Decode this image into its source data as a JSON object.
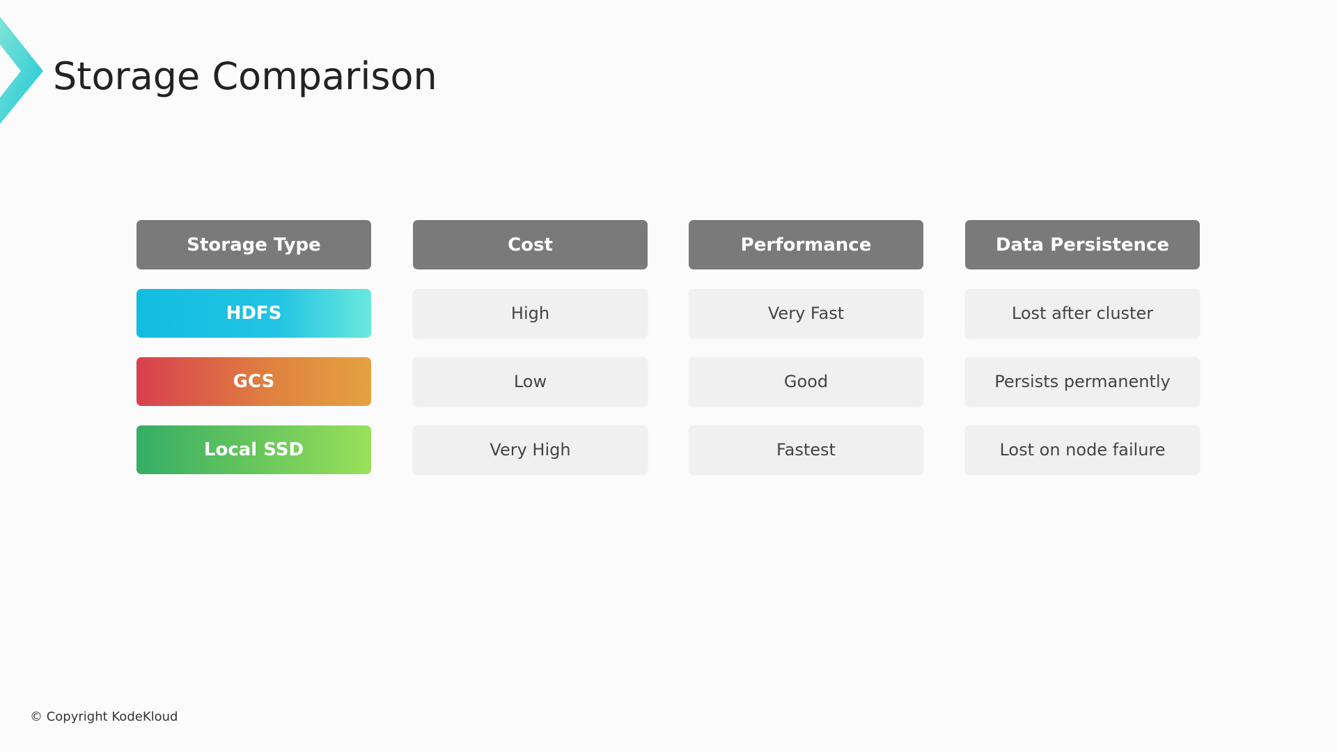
{
  "header": {
    "title": "Storage Comparison"
  },
  "table": {
    "headers": [
      "Storage Type",
      "Cost",
      "Performance",
      "Data Persistence"
    ],
    "rows": [
      [
        "HDFS",
        "High",
        "Very Fast",
        "Lost after cluster"
      ],
      [
        "GCS",
        "Low",
        "Good",
        "Persists permanently"
      ],
      [
        "Local SSD",
        "Very High",
        "Fastest",
        "Lost on node failure"
      ]
    ]
  },
  "footer": {
    "copyright": "© Copyright KodeKloud"
  }
}
